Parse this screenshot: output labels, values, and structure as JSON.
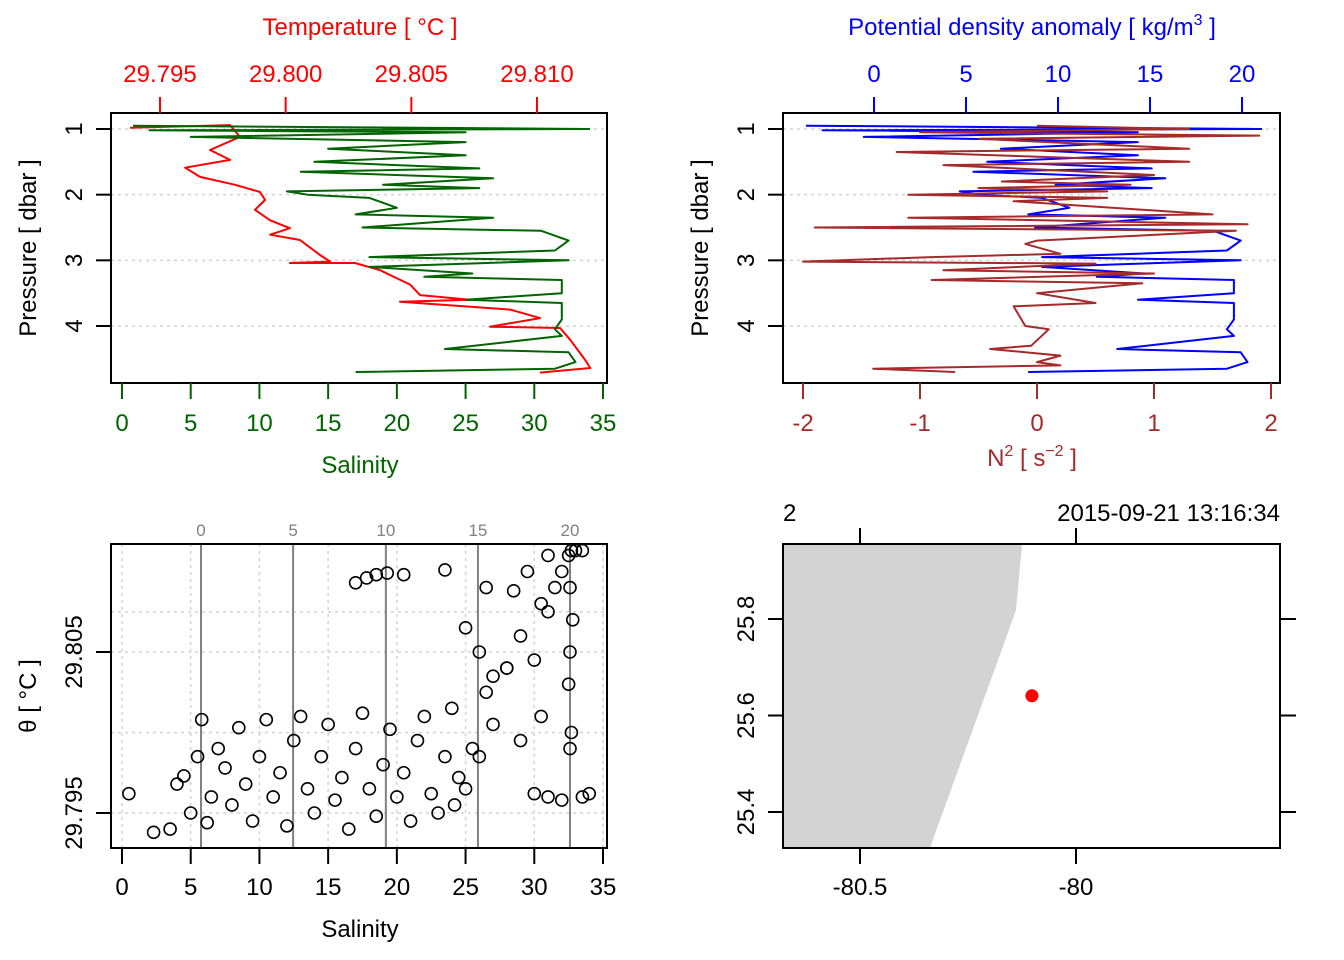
{
  "colors": {
    "temperature": "#ff0000",
    "salinity": "#006400",
    "density": "#0000ff",
    "n2": "#a52a2a",
    "grid": "#d3d3d3",
    "isopycnal": "#808080",
    "land": "#d3d3d3",
    "station": "#ff0000"
  },
  "chart_data": [
    {
      "type": "line",
      "panel": "profile-temperature-salinity",
      "top_axis_label": "Temperature [ °C ]",
      "bottom_axis_label": "Salinity",
      "ylabel": "Pressure [ dbar ]",
      "y_reversed": true,
      "ylim": [
        4.87,
        0.76
      ],
      "y_ticks": [
        1,
        2,
        3,
        4
      ],
      "top_ticks": [
        "29.795",
        "29.800",
        "29.805",
        "29.810"
      ],
      "top_tick_values": [
        29.795,
        29.8,
        29.805,
        29.81
      ],
      "bottom_ticks": [
        0,
        5,
        10,
        15,
        20,
        25,
        30,
        35
      ],
      "grid": "horizontal dotted at y ticks",
      "series": [
        {
          "variable": "temperature",
          "axis": "top",
          "x": [
            29.79381,
            29.79779,
            29.79818,
            29.79699,
            29.79779,
            29.796,
            29.79659,
            29.79799,
            29.79898,
            29.79918,
            29.79878,
            29.79938,
            29.80017,
            29.79938,
            29.80057,
            29.80137,
            29.80177,
            29.80017,
            29.80276,
            29.80376,
            29.80495,
            29.80535,
            29.80734,
            29.80455,
            29.80893,
            29.81012,
            29.80813,
            29.81092,
            29.81132,
            29.81192,
            29.81212,
            29.81012
          ],
          "pressure": [
            0.98,
            0.94,
            1.12,
            1.32,
            1.47,
            1.59,
            1.73,
            1.85,
            1.96,
            2.08,
            2.23,
            2.39,
            2.51,
            2.61,
            2.69,
            2.92,
            3.02,
            3.04,
            3.04,
            3.15,
            3.37,
            3.53,
            3.6,
            3.63,
            3.75,
            3.88,
            4.01,
            4.03,
            4.21,
            4.52,
            4.64,
            4.71
          ]
        },
        {
          "variable": "salinity",
          "axis": "bottom",
          "x": [
            0.8,
            34,
            2,
            25,
            5,
            25,
            15,
            25,
            14,
            26,
            13,
            27,
            19,
            26,
            12,
            13.5,
            18,
            20,
            17,
            27,
            17.5,
            30.5,
            32.5,
            31.5,
            18,
            32.5,
            18,
            25.5,
            22,
            32,
            32,
            25,
            32,
            32,
            31.5,
            32,
            23.5,
            32.5,
            33,
            31.5,
            17
          ],
          "pressure": [
            0.95,
            1.0,
            1.02,
            1.05,
            1.12,
            1.2,
            1.3,
            1.4,
            1.5,
            1.6,
            1.65,
            1.75,
            1.85,
            1.9,
            1.95,
            2.0,
            2.05,
            2.2,
            2.3,
            2.35,
            2.5,
            2.55,
            2.7,
            2.85,
            2.95,
            3.0,
            3.1,
            3.2,
            3.25,
            3.3,
            3.5,
            3.6,
            3.65,
            3.9,
            4.05,
            4.15,
            4.35,
            4.4,
            4.55,
            4.65,
            4.7
          ]
        }
      ]
    },
    {
      "type": "line",
      "panel": "profile-density-n2",
      "top_axis_label": "Potential density anomaly [ kg/m",
      "top_axis_label_sup": "3",
      "top_axis_label_end": " ]",
      "bottom_axis_label": "N",
      "bottom_axis_label_sup": "2",
      "bottom_axis_label_mid": " [ s",
      "bottom_axis_label_sup2": "−2",
      "bottom_axis_label_end": " ]",
      "ylabel": "Pressure [ dbar ]",
      "y_reversed": true,
      "ylim": [
        4.87,
        0.76
      ],
      "y_ticks": [
        1,
        2,
        3,
        4
      ],
      "top_ticks": [
        0,
        5,
        10,
        15,
        20
      ],
      "bottom_ticks": [
        -2,
        -1,
        0,
        1,
        2
      ],
      "grid": "horizontal dotted at y ticks",
      "series": [
        {
          "variable": "density",
          "axis": "top",
          "x": [
            -3.7,
            21.05,
            -2.8,
            14.34,
            -0.56,
            14.34,
            6.89,
            14.34,
            6.15,
            15.09,
            5.4,
            15.83,
            9.87,
            15.09,
            4.66,
            5.77,
            9.13,
            10.62,
            8.38,
            15.83,
            8.75,
            18.44,
            19.93,
            19.18,
            9.13,
            19.93,
            9.13,
            14.71,
            12.11,
            19.56,
            19.56,
            14.34,
            19.56,
            19.56,
            19.18,
            19.56,
            13.22,
            19.93,
            20.3,
            19.18,
            8.38
          ],
          "pressure": [
            0.95,
            1.0,
            1.02,
            1.05,
            1.12,
            1.2,
            1.3,
            1.4,
            1.5,
            1.6,
            1.65,
            1.75,
            1.85,
            1.9,
            1.95,
            2.0,
            2.05,
            2.2,
            2.3,
            2.35,
            2.5,
            2.55,
            2.7,
            2.85,
            2.95,
            3.0,
            3.1,
            3.2,
            3.25,
            3.3,
            3.5,
            3.6,
            3.65,
            3.9,
            4.05,
            4.15,
            4.35,
            4.4,
            4.55,
            4.65,
            4.7
          ]
        },
        {
          "variable": "N2",
          "axis": "bottom",
          "x": [
            0,
            1.3,
            -1,
            1.9,
            -0.5,
            1.3,
            -1.2,
            1.3,
            -0.8,
            1.0,
            -0.3,
            0.8,
            -0.5,
            0.6,
            -1.1,
            0.6,
            -0.2,
            1.5,
            -1.1,
            1.8,
            -1.9,
            1.7,
            0,
            -0.1,
            0.2,
            -0.9,
            -2.0,
            0.5,
            -0.8,
            1.0,
            -0.9,
            0.9,
            0,
            0.5,
            -0.2,
            -0.1,
            0.1,
            -0.05,
            -0.4,
            0.2,
            0,
            0.2,
            -1.4,
            -0.7
          ],
          "pressure": [
            0.95,
            1.0,
            1.05,
            1.1,
            1.15,
            1.3,
            1.35,
            1.5,
            1.55,
            1.7,
            1.8,
            1.85,
            1.9,
            1.95,
            2.0,
            2.05,
            2.1,
            2.3,
            2.35,
            2.45,
            2.5,
            2.55,
            2.7,
            2.75,
            2.9,
            2.95,
            3.02,
            3.05,
            3.15,
            3.2,
            3.3,
            3.35,
            3.5,
            3.65,
            3.7,
            4.0,
            4.05,
            4.3,
            4.35,
            4.45,
            4.55,
            4.6,
            4.65,
            4.7
          ]
        }
      ]
    },
    {
      "type": "scatter",
      "panel": "ts-diagram",
      "xlabel": "Salinity",
      "ylabel": "θ [ °C ]",
      "xlim": [
        -0.8,
        35.3
      ],
      "ylim": [
        29.7928,
        29.8117
      ],
      "x_ticks": [
        0,
        5,
        10,
        15,
        20,
        25,
        30,
        35
      ],
      "y_ticks": [
        "29.795",
        "29.805"
      ],
      "y_tick_values": [
        29.795,
        29.805
      ],
      "y_grid": [
        29.795,
        29.8,
        29.805,
        29.8075
      ],
      "grid": "dotted",
      "isopycnals": {
        "labels": [
          "0",
          "5",
          "10",
          "15",
          "20"
        ],
        "salinity_at": [
          5.75,
          12.45,
          19.2,
          25.9,
          32.6
        ]
      },
      "points": [
        [
          0.5,
          29.7962
        ],
        [
          2.3,
          29.7938
        ],
        [
          3.5,
          29.794
        ],
        [
          4,
          29.7968
        ],
        [
          4.5,
          29.7973
        ],
        [
          5,
          29.795
        ],
        [
          5.5,
          29.7985
        ],
        [
          5.8,
          29.8008
        ],
        [
          6.2,
          29.7944
        ],
        [
          6.5,
          29.796
        ],
        [
          7,
          29.799
        ],
        [
          7.5,
          29.7978
        ],
        [
          8,
          29.7955
        ],
        [
          8.5,
          29.8003
        ],
        [
          9,
          29.7968
        ],
        [
          9.5,
          29.7945
        ],
        [
          10,
          29.7985
        ],
        [
          10.5,
          29.8008
        ],
        [
          11,
          29.796
        ],
        [
          11.5,
          29.7975
        ],
        [
          12,
          29.7942
        ],
        [
          12.5,
          29.7995
        ],
        [
          13,
          29.801
        ],
        [
          13.5,
          29.7965
        ],
        [
          14,
          29.795
        ],
        [
          14.5,
          29.7985
        ],
        [
          15,
          29.8005
        ],
        [
          15.5,
          29.7958
        ],
        [
          16,
          29.7972
        ],
        [
          16.5,
          29.794
        ],
        [
          17,
          29.799
        ],
        [
          17.5,
          29.8012
        ],
        [
          18,
          29.7965
        ],
        [
          18.5,
          29.7948
        ],
        [
          19,
          29.798
        ],
        [
          19.5,
          29.8002
        ],
        [
          20,
          29.796
        ],
        [
          20.5,
          29.7975
        ],
        [
          21,
          29.7945
        ],
        [
          21.5,
          29.7995
        ],
        [
          22,
          29.801
        ],
        [
          22.5,
          29.7962
        ],
        [
          23,
          29.795
        ],
        [
          23.5,
          29.7985
        ],
        [
          24,
          29.8015
        ],
        [
          24.2,
          29.7955
        ],
        [
          24.5,
          29.7972
        ],
        [
          25,
          29.7965
        ],
        [
          25.5,
          29.799
        ],
        [
          26,
          29.7985
        ],
        [
          26.5,
          29.8025
        ],
        [
          27,
          29.8035
        ],
        [
          28,
          29.804
        ],
        [
          29,
          29.806
        ],
        [
          30,
          29.8045
        ],
        [
          30.5,
          29.808
        ],
        [
          31,
          29.8075
        ],
        [
          31.5,
          29.809
        ],
        [
          32,
          29.81
        ],
        [
          32.5,
          29.811
        ],
        [
          32.7,
          29.8113
        ],
        [
          32.6,
          29.805
        ],
        [
          32.7,
          29.8
        ],
        [
          32.6,
          29.799
        ],
        [
          32.5,
          29.803
        ],
        [
          32.8,
          29.807
        ],
        [
          32.6,
          29.809
        ],
        [
          33,
          29.8113
        ],
        [
          33.5,
          29.8113
        ],
        [
          30,
          29.7962
        ],
        [
          31,
          29.796
        ],
        [
          32,
          29.7958
        ],
        [
          33.5,
          29.796
        ],
        [
          34,
          29.7962
        ],
        [
          29,
          29.7995
        ],
        [
          30.5,
          29.801
        ],
        [
          27,
          29.8005
        ],
        [
          28,
          29.804
        ],
        [
          25,
          29.8065
        ],
        [
          26,
          29.805
        ],
        [
          17,
          29.8093
        ],
        [
          17.8,
          29.8096
        ],
        [
          18.5,
          29.8098
        ],
        [
          19.3,
          29.8099
        ],
        [
          20.5,
          29.8098
        ],
        [
          23.5,
          29.8101
        ],
        [
          26.5,
          29.809
        ],
        [
          28.5,
          29.8088
        ],
        [
          29.5,
          29.81
        ],
        [
          31,
          29.811
        ]
      ]
    },
    {
      "type": "map",
      "panel": "station-map",
      "station_label": "2",
      "station_time": "2015-09-21 13:16:34",
      "xlim": [
        -80.679,
        -79.53
      ],
      "ylim": [
        25.326,
        25.955
      ],
      "x_ticks": [
        "-80.5",
        "-80"
      ],
      "x_tick_values": [
        -80.5,
        -80
      ],
      "y_ticks": [
        "25.4",
        "25.6",
        "25.8"
      ],
      "y_tick_values": [
        25.4,
        25.6,
        25.8
      ],
      "coastline": [
        [
          -80.125,
          25.955
        ],
        [
          -80.139,
          25.818
        ],
        [
          -80.338,
          25.326
        ]
      ],
      "station": {
        "lon": -80.102,
        "lat": 25.641
      }
    }
  ]
}
